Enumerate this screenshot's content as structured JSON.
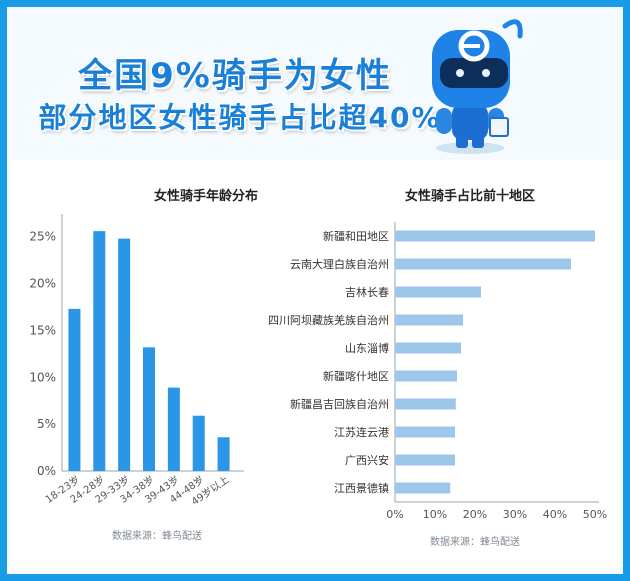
{
  "header": {
    "title_line1": "全国9%骑手为女性",
    "title_line2": "部分地区女性骑手占比超40%"
  },
  "colors": {
    "frame": "#1a9be6",
    "bar_left": "#2b96e6",
    "bar_right": "#9cc6ea",
    "title": "#1a7fd6"
  },
  "mascot": {
    "icon": "robot-mascot-icon"
  },
  "chart_data": [
    {
      "type": "bar",
      "title": "女性骑手年龄分布",
      "categories": [
        "18-23岁",
        "24-28岁",
        "29-33岁",
        "34-38岁",
        "39-43岁",
        "44-48岁",
        "49岁以上"
      ],
      "values": [
        17.3,
        25.6,
        24.8,
        13.2,
        8.9,
        5.9,
        3.6
      ],
      "yticks": [
        "0%",
        "5%",
        "10%",
        "15%",
        "20%",
        "25%"
      ],
      "ylim": [
        0,
        27
      ],
      "grid": false,
      "source": "数据来源：蜂鸟配送"
    },
    {
      "type": "bar",
      "orientation": "horizontal",
      "title": "女性骑手占比前十地区",
      "categories": [
        "新疆和田地区",
        "云南大理白族自治州",
        "吉林长春",
        "四川阿坝藏族羌族自治州",
        "山东淄博",
        "新疆喀什地区",
        "新疆昌吉回族自治州",
        "江苏连云港",
        "广西兴安",
        "江西景德镇"
      ],
      "values": [
        50,
        44,
        21.5,
        17,
        16.5,
        15.5,
        15.2,
        15,
        15,
        13.8
      ],
      "xticks": [
        "0%",
        "10%",
        "20%",
        "30%",
        "40%",
        "50%"
      ],
      "xlim": [
        0,
        50
      ],
      "grid": false,
      "source": "数据来源：蜂鸟配送"
    }
  ]
}
